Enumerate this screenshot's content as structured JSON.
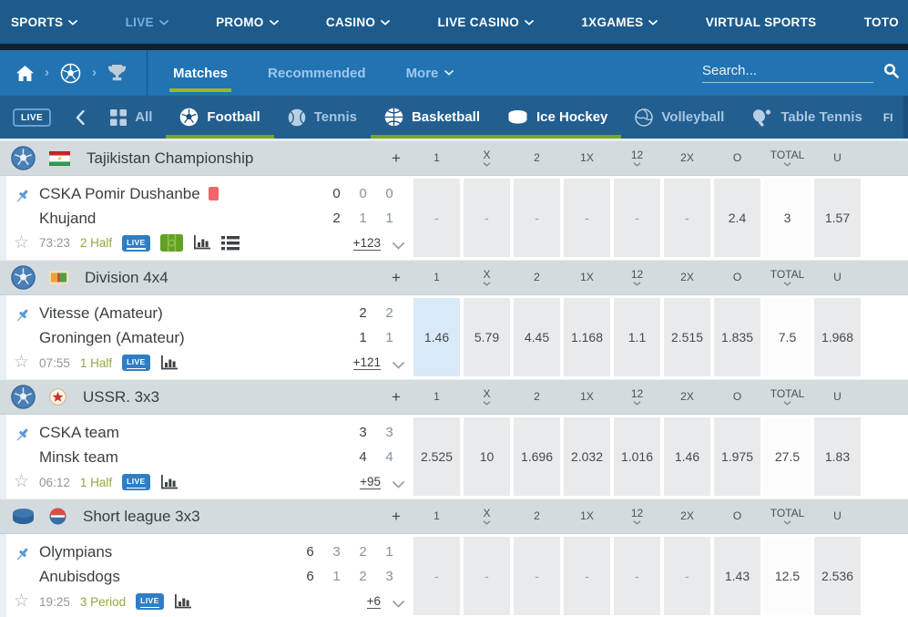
{
  "colors": {
    "nav_bg": "#1d5b8c",
    "subnav_bg": "#2273b2",
    "sportsbar_bg": "#225e90",
    "accent_green": "#72a91c",
    "tab_underline": "#9fb52c",
    "live_blue": "#2f7ec5",
    "highlight_cell": "#d9e9f7",
    "league_header_bg": "#d4dbdf"
  },
  "topnav": {
    "items": [
      {
        "label": "SPORTS",
        "chevron": true,
        "active": false
      },
      {
        "label": "LIVE",
        "chevron": true,
        "active": true
      },
      {
        "label": "PROMO",
        "chevron": true,
        "active": false
      },
      {
        "label": "CASINO",
        "chevron": true,
        "active": false
      },
      {
        "label": "LIVE CASINO",
        "chevron": true,
        "active": false
      },
      {
        "label": "1XGAMES",
        "chevron": true,
        "active": false
      },
      {
        "label": "VIRTUAL SPORTS",
        "chevron": false,
        "active": false
      },
      {
        "label": "TOTO",
        "chevron": false,
        "active": false
      }
    ]
  },
  "subnav": {
    "breadcrumb_icons": [
      "home-icon",
      "football-icon",
      "trophy-icon"
    ],
    "tabs": [
      {
        "label": "Matches",
        "active": true,
        "chevron": false
      },
      {
        "label": "Recommended",
        "active": false,
        "chevron": false
      },
      {
        "label": "More",
        "active": false,
        "chevron": true
      }
    ],
    "search_placeholder": "Search..."
  },
  "sportsbar": {
    "live_badge": "LIVE",
    "items": [
      {
        "label": "All",
        "icon": "grid-icon",
        "active": false
      },
      {
        "label": "Football",
        "icon": "football-sport-icon",
        "active": true
      },
      {
        "label": "Tennis",
        "icon": "tennis-icon",
        "active": false
      },
      {
        "label": "Basketball",
        "icon": "basketball-icon",
        "active": true
      },
      {
        "label": "Ice Hockey",
        "icon": "ice-hockey-icon",
        "active": true
      },
      {
        "label": "Volleyball",
        "icon": "volleyball-icon",
        "active": false
      },
      {
        "label": "Table Tennis",
        "icon": "table-tennis-icon",
        "active": false
      }
    ],
    "overflow_label": "FI"
  },
  "odds_columns": [
    {
      "label": "1",
      "sortable": false
    },
    {
      "label": "X",
      "sortable": true
    },
    {
      "label": "2",
      "sortable": false
    },
    {
      "label": "1X",
      "sortable": false
    },
    {
      "label": "12",
      "sortable": true
    },
    {
      "label": "2X",
      "sortable": false
    },
    {
      "label": "O",
      "sortable": false
    },
    {
      "label": "TOTAL",
      "sortable": true
    },
    {
      "label": "U",
      "sortable": false
    }
  ],
  "plus_label": "+",
  "total_col_index": 7,
  "sections": [
    {
      "league": "Tajikistan Championship",
      "sport_icon": "football-league-icon",
      "flag_icon": "tajikistan-flag",
      "match": {
        "team1": "CSKA Pomir Dushanbe",
        "team1_red_card": true,
        "team2": "Khujand",
        "scores": {
          "team1": [
            "0",
            "0",
            "0"
          ],
          "team2": [
            "2",
            "1",
            "1"
          ]
        },
        "time": "73:23",
        "period": "2 Half",
        "expand_label": "+123",
        "live_badge": "LIVE",
        "has_field_icon": true,
        "has_chart_icon": true,
        "has_list_icon": true,
        "odds": [
          "-",
          "-",
          "-",
          "-",
          "-",
          "-",
          "2.4",
          "3",
          "1.57"
        ],
        "highlight_cols": []
      }
    },
    {
      "league": "Division 4x4",
      "sport_icon": "football-league-icon",
      "flag_icon": "division-emblem",
      "match": {
        "team1": "Vitesse (Amateur)",
        "team1_red_card": false,
        "team2": "Groningen (Amateur)",
        "scores": {
          "team1": [
            "2",
            "2"
          ],
          "team2": [
            "1",
            "1"
          ]
        },
        "time": "07:55",
        "period": "1 Half",
        "expand_label": "+121",
        "live_badge": "LIVE",
        "has_field_icon": false,
        "has_chart_icon": true,
        "has_list_icon": false,
        "odds": [
          "1.46",
          "5.79",
          "4.45",
          "1.168",
          "1.1",
          "2.515",
          "1.835",
          "7.5",
          "1.968"
        ],
        "highlight_cols": [
          0
        ]
      }
    },
    {
      "league": "USSR. 3x3",
      "sport_icon": "football-league-icon",
      "flag_icon": "ussr-emblem",
      "match": {
        "team1": "CSKA team",
        "team1_red_card": false,
        "team2": "Minsk team",
        "scores": {
          "team1": [
            "3",
            "3"
          ],
          "team2": [
            "4",
            "4"
          ]
        },
        "time": "06:12",
        "period": "1 Half",
        "expand_label": "+95",
        "live_badge": "LIVE",
        "has_field_icon": false,
        "has_chart_icon": true,
        "has_list_icon": false,
        "odds": [
          "2.525",
          "10",
          "1.696",
          "2.032",
          "1.016",
          "1.46",
          "1.975",
          "27.5",
          "1.83"
        ],
        "highlight_cols": []
      }
    },
    {
      "league": "Short league 3x3",
      "sport_icon": "puck-league-icon",
      "flag_icon": "shortleague-emblem",
      "match": {
        "team1": "Olympians",
        "team1_red_card": false,
        "team2": "Anubisdogs",
        "scores": {
          "team1": [
            "6",
            "3",
            "2",
            "1"
          ],
          "team2": [
            "6",
            "1",
            "2",
            "3"
          ]
        },
        "time": "19:25",
        "period": "3 Period",
        "expand_label": "+6",
        "live_badge": "LIVE",
        "has_field_icon": false,
        "has_chart_icon": true,
        "has_list_icon": false,
        "odds": [
          "-",
          "-",
          "-",
          "-",
          "-",
          "-",
          "1.43",
          "12.5",
          "2.536"
        ],
        "highlight_cols": []
      }
    }
  ]
}
